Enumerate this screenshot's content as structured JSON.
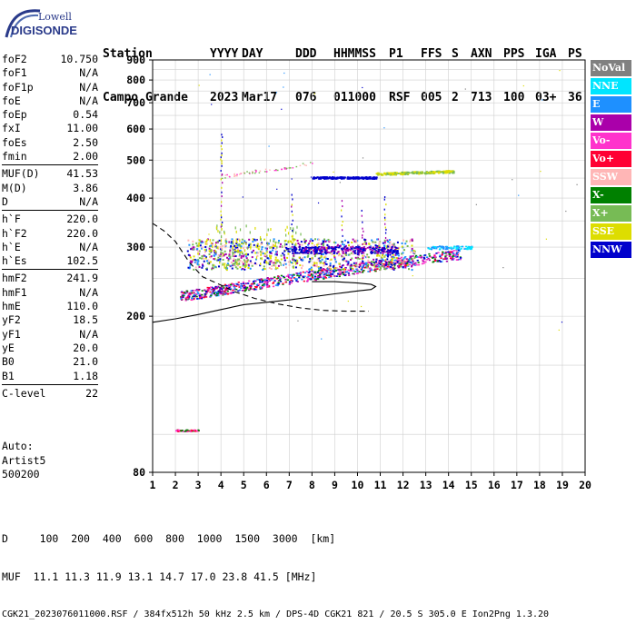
{
  "logo": {
    "line1": "Lowell",
    "line2": "DIGISONDE"
  },
  "header": {
    "row1": [
      "Station",
      "YYYY",
      "DAY",
      "DDD",
      "HHMMSS",
      "P1",
      "FFS",
      "S",
      "AXN",
      "PPS",
      "IGA",
      "PS"
    ],
    "row2": [
      "Campo Grande",
      "2023",
      "Mar17",
      "076",
      "011000",
      "RSF",
      "005",
      "2",
      "713",
      "100",
      "03+",
      "36"
    ]
  },
  "params": [
    [
      {
        "name": "foF2",
        "value": "10.750"
      },
      {
        "name": "foF1",
        "value": "N/A"
      },
      {
        "name": "foF1p",
        "value": "N/A"
      },
      {
        "name": "foE",
        "value": "N/A"
      },
      {
        "name": "foEp",
        "value": "0.54"
      },
      {
        "name": "fxI",
        "value": "11.00"
      },
      {
        "name": "foEs",
        "value": "2.50"
      },
      {
        "name": "fmin",
        "value": "2.00"
      }
    ],
    [
      {
        "name": "MUF(D)",
        "value": "41.53"
      },
      {
        "name": "M(D)",
        "value": "3.86"
      },
      {
        "name": "D",
        "value": "N/A"
      }
    ],
    [
      {
        "name": "h`F",
        "value": "220.0"
      },
      {
        "name": "h`F2",
        "value": "220.0"
      },
      {
        "name": "h`E",
        "value": "N/A"
      },
      {
        "name": "h`Es",
        "value": "102.5"
      }
    ],
    [
      {
        "name": "hmF2",
        "value": "241.9"
      },
      {
        "name": "hmF1",
        "value": "N/A"
      },
      {
        "name": "hmE",
        "value": "110.0"
      },
      {
        "name": "yF2",
        "value": "18.5"
      },
      {
        "name": "yF1",
        "value": "N/A"
      },
      {
        "name": "yE",
        "value": "20.0"
      },
      {
        "name": "B0",
        "value": "21.0"
      },
      {
        "name": "B1",
        "value": "1.18"
      }
    ],
    [
      {
        "name": "C-level",
        "value": "22"
      }
    ]
  ],
  "autoscaling": {
    "line1": "Auto:",
    "line2": "Artist5",
    "line3": "500200"
  },
  "legend": [
    {
      "label": "NoVal",
      "color": "#808080"
    },
    {
      "label": "NNE",
      "color": "#00e5ff"
    },
    {
      "label": "E",
      "color": "#1e90ff"
    },
    {
      "label": "W",
      "color": "#aa00aa"
    },
    {
      "label": "Vo-",
      "color": "#ff33cc"
    },
    {
      "label": "Vo+",
      "color": "#ff0033"
    },
    {
      "label": "SSW",
      "color": "#ffb6b6"
    },
    {
      "label": "X-",
      "color": "#008000"
    },
    {
      "label": "X+",
      "color": "#77bb55"
    },
    {
      "label": "SSE",
      "color": "#dddd00"
    },
    {
      "label": "NNW",
      "color": "#0000cc"
    }
  ],
  "chart_data": {
    "type": "scatter",
    "xlabel": "",
    "ylabel": "",
    "xlim": [
      1,
      20
    ],
    "ylim": [
      80,
      900
    ],
    "x_ticks": [
      1,
      2,
      3,
      4,
      5,
      6,
      7,
      8,
      9,
      10,
      11,
      12,
      13,
      14,
      15,
      16,
      17,
      18,
      19,
      20
    ],
    "y_ticks": [
      80,
      200,
      300,
      400,
      500,
      600,
      700,
      800,
      900
    ],
    "grid": true,
    "y_scale": "log",
    "traces": [
      {
        "kind": "dashed-curve",
        "points": [
          [
            1,
            345
          ],
          [
            1.5,
            330
          ],
          [
            2,
            310
          ],
          [
            2.6,
            275
          ],
          [
            3.2,
            252
          ],
          [
            4,
            240
          ],
          [
            4.6,
            231
          ],
          [
            5.5,
            222
          ],
          [
            6.5,
            215
          ],
          [
            7.5,
            210
          ],
          [
            8.5,
            207
          ],
          [
            9.5,
            206
          ],
          [
            10.5,
            206
          ]
        ]
      },
      {
        "kind": "solid-profile",
        "points": [
          [
            1,
            193
          ],
          [
            2,
            197
          ],
          [
            3,
            202
          ],
          [
            4,
            208
          ],
          [
            5,
            214
          ],
          [
            7,
            220
          ],
          [
            9,
            228
          ],
          [
            10,
            232
          ],
          [
            10.6,
            234
          ],
          [
            10.8,
            238
          ],
          [
            10.6,
            241
          ],
          [
            10,
            243
          ],
          [
            9,
            245
          ],
          [
            8,
            245
          ]
        ]
      }
    ]
  },
  "axis_tables": {
    "distance_label": "D",
    "distances": [
      "100",
      "200",
      "400",
      "600",
      "800",
      "1000",
      "1500",
      "3000"
    ],
    "distance_unit": "[km]",
    "muf_label": "MUF",
    "mufs": [
      "11.1",
      "11.3",
      "11.9",
      "13.1",
      "14.7",
      "17.0",
      "23.8",
      "41.5"
    ],
    "muf_unit": "[MHz]"
  },
  "footer": "CGK21_2023076011000.RSF / 384fx512h 50 kHz 2.5 km / DPS-4D CGK21 821 / 20.5 S 305.0 E Ion2Png 1.3.20"
}
